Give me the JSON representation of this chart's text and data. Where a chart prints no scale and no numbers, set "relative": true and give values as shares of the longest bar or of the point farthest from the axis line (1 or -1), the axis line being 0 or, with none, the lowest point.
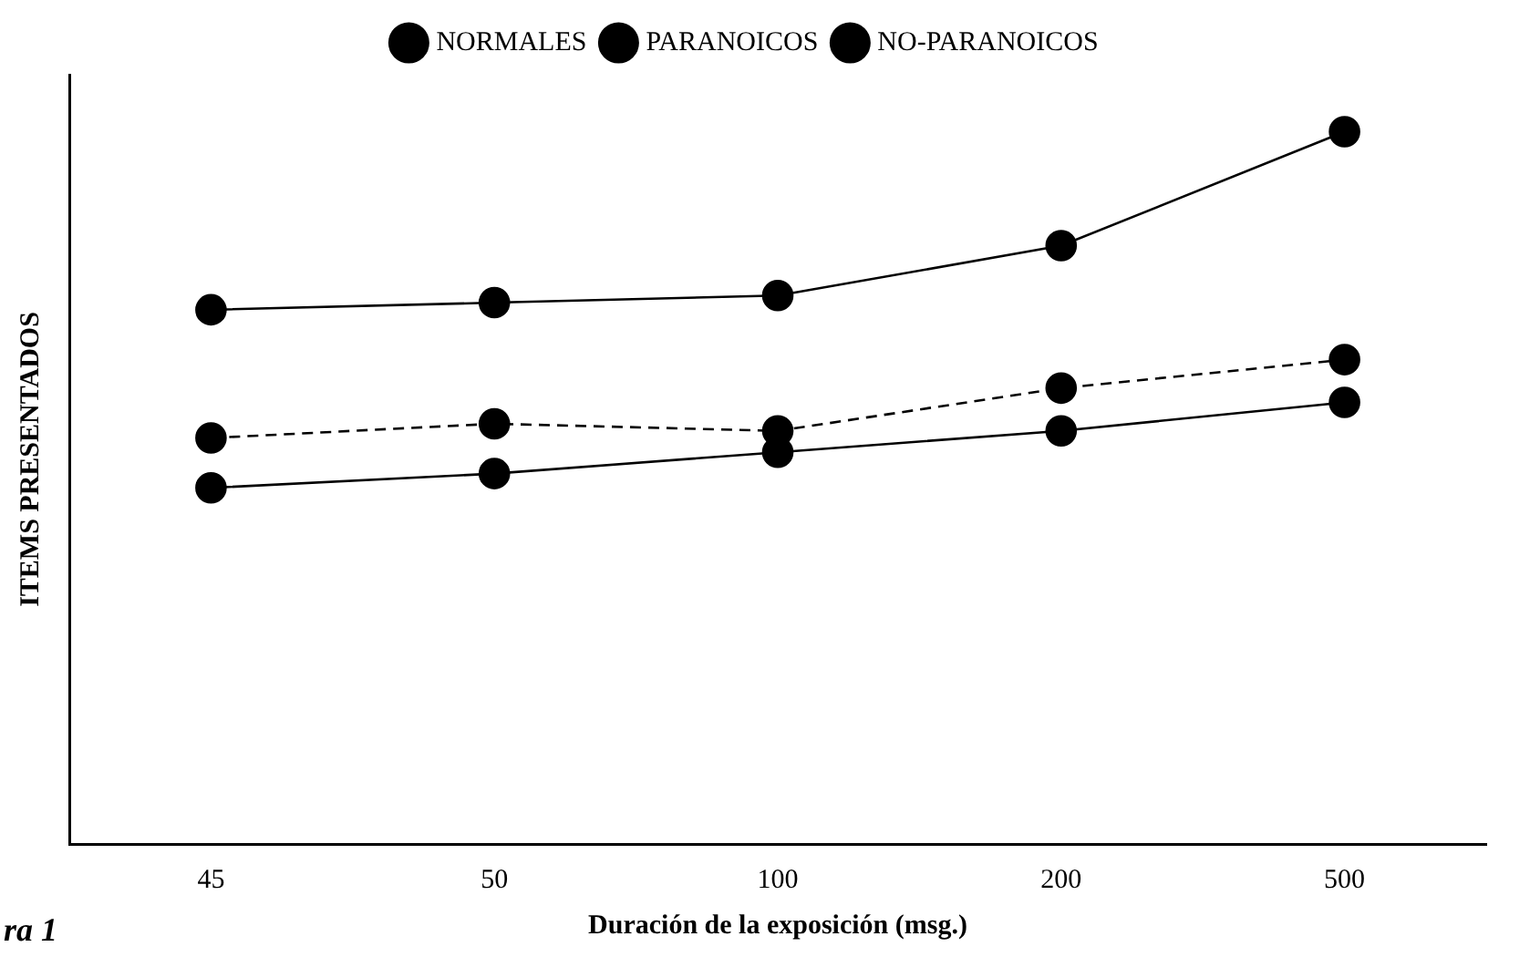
{
  "chart_data": {
    "type": "line",
    "relative": true,
    "xlabel": "Duración de la exposición (msg.)",
    "ylabel": "ITEMS PRESENTADOS",
    "categories": [
      "45",
      "50",
      "100",
      "200",
      "500"
    ],
    "series": [
      {
        "name": "NORMALES",
        "color": "#000000",
        "line_style": "solid",
        "values": [
          0.75,
          0.76,
          0.77,
          0.84,
          1
        ]
      },
      {
        "name": "PARANOICOS",
        "color": "#000000",
        "line_style": "dashed",
        "values": [
          0.57,
          0.59,
          0.58,
          0.64,
          0.68
        ]
      },
      {
        "name": "NO-PARANOICOS",
        "color": "#000000",
        "line_style": "solid",
        "values": [
          0.5,
          0.52,
          0.55,
          0.58,
          0.62
        ]
      }
    ],
    "marker": "circle",
    "legend": "top",
    "grid": false,
    "annotations": [
      "ra 1"
    ]
  }
}
